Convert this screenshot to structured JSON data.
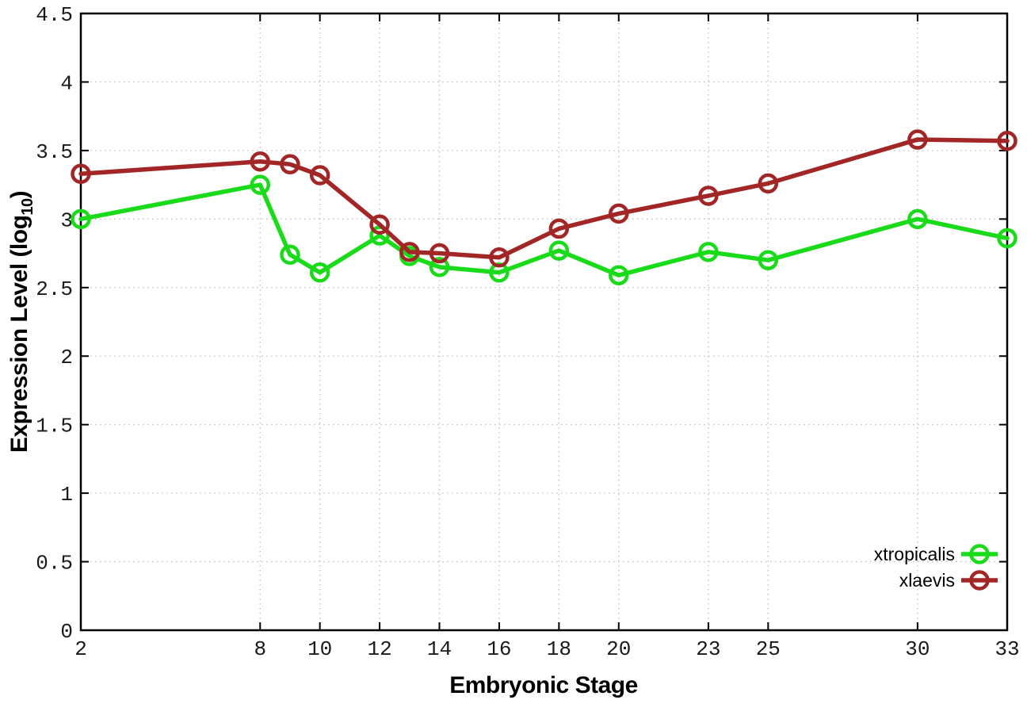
{
  "chart_data": {
    "type": "line",
    "title": "",
    "xlabel": "Embryonic Stage",
    "ylabel": "Expression Level (log10)",
    "ylabel_parts": {
      "pre": "Expression Level (log",
      "sub": "10",
      "post": ")"
    },
    "xlim": [
      2,
      33
    ],
    "ylim": [
      0,
      4.5
    ],
    "xticks": [
      2,
      8,
      10,
      12,
      14,
      16,
      18,
      20,
      23,
      25,
      30,
      33
    ],
    "yticks": [
      0,
      0.5,
      1,
      1.5,
      2,
      2.5,
      3,
      3.5,
      4,
      4.5
    ],
    "grid": true,
    "legend_position": "bottom-right",
    "x": [
      2,
      8,
      9,
      10,
      12,
      13,
      14,
      16,
      18,
      20,
      23,
      25,
      30,
      33
    ],
    "series": [
      {
        "name": "xtropicalis",
        "color": "#1adb1a",
        "marker": "open-circle",
        "values": [
          3.0,
          3.25,
          2.74,
          2.61,
          2.88,
          2.73,
          2.65,
          2.61,
          2.77,
          2.59,
          2.76,
          2.7,
          3.0,
          2.86
        ]
      },
      {
        "name": "xlaevis",
        "color": "#a22626",
        "marker": "open-circle",
        "values": [
          3.33,
          3.42,
          3.4,
          3.32,
          2.96,
          2.76,
          2.75,
          2.72,
          2.93,
          3.04,
          3.17,
          3.26,
          3.58,
          3.57
        ]
      }
    ],
    "axis_color": "#000000",
    "grid_color": "#bdbdbd",
    "background": "#ffffff"
  }
}
